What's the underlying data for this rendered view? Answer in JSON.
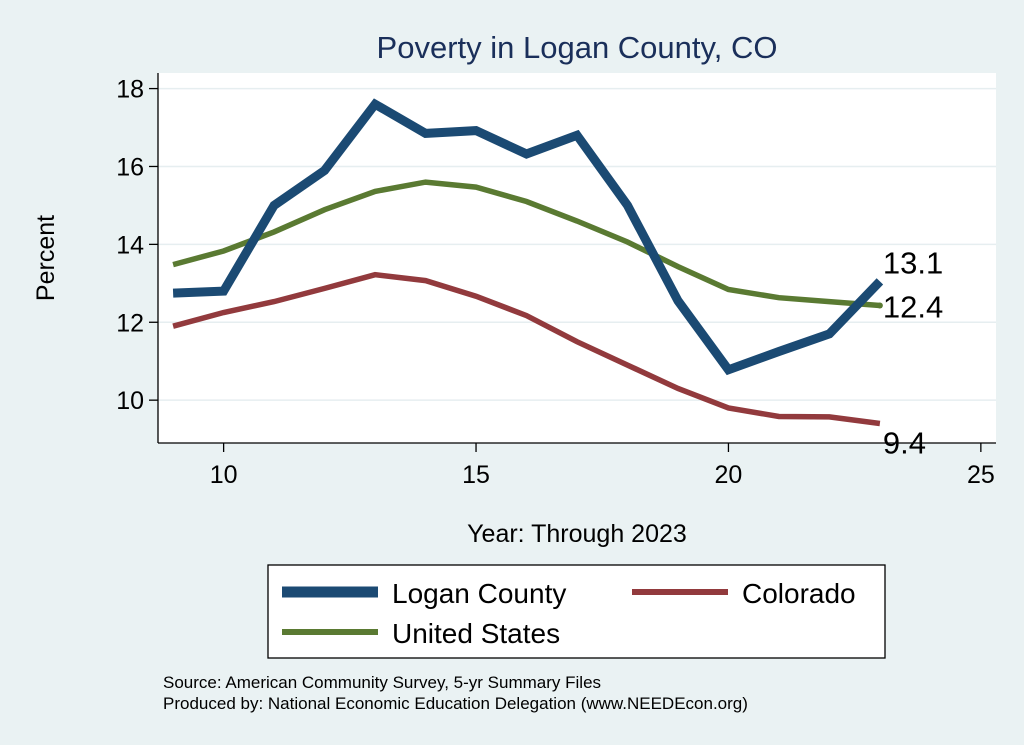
{
  "chart_data": {
    "type": "line",
    "title": "Poverty in Logan County, CO",
    "xlabel": "Year: Through 2023",
    "ylabel": "Percent",
    "xlim": [
      8.7,
      25.3
    ],
    "ylim": [
      8.9,
      18.4
    ],
    "xticks": [
      10,
      15,
      20,
      25
    ],
    "yticks": [
      10,
      12,
      14,
      16,
      18
    ],
    "x": [
      9,
      10,
      11,
      12,
      13,
      14,
      15,
      16,
      17,
      18,
      19,
      20,
      21,
      22,
      23
    ],
    "series": [
      {
        "name": "Logan County",
        "color": "#1b4a73",
        "values": [
          12.75,
          12.8,
          15.0,
          15.9,
          17.6,
          16.85,
          16.92,
          16.32,
          16.8,
          15.0,
          12.55,
          10.78,
          11.25,
          11.7,
          13.05
        ],
        "end_label": "13.1"
      },
      {
        "name": "Colorado",
        "color": "#923a3d",
        "values": [
          11.9,
          12.25,
          12.53,
          12.87,
          13.22,
          13.07,
          12.67,
          12.17,
          11.5,
          10.9,
          10.3,
          9.8,
          9.58,
          9.57,
          9.4
        ],
        "end_label": "9.4"
      },
      {
        "name": "United States",
        "color": "#5a7a32",
        "values": [
          13.48,
          13.83,
          14.32,
          14.89,
          15.36,
          15.6,
          15.47,
          15.1,
          14.6,
          14.06,
          13.43,
          12.84,
          12.63,
          12.53,
          12.43
        ],
        "end_label": "12.4"
      }
    ],
    "legend": [
      {
        "label": "Logan County",
        "color": "#1b4a73"
      },
      {
        "label": "Colorado",
        "color": "#923a3d"
      },
      {
        "label": "United States",
        "color": "#5a7a32"
      }
    ],
    "legend_position": "bottom",
    "grid": true
  },
  "footer": {
    "source": "Source: American Community Survey, 5-yr Summary Files",
    "produced": "Produced by: National Economic Education Delegation (www.NEEDEcon.org)"
  }
}
